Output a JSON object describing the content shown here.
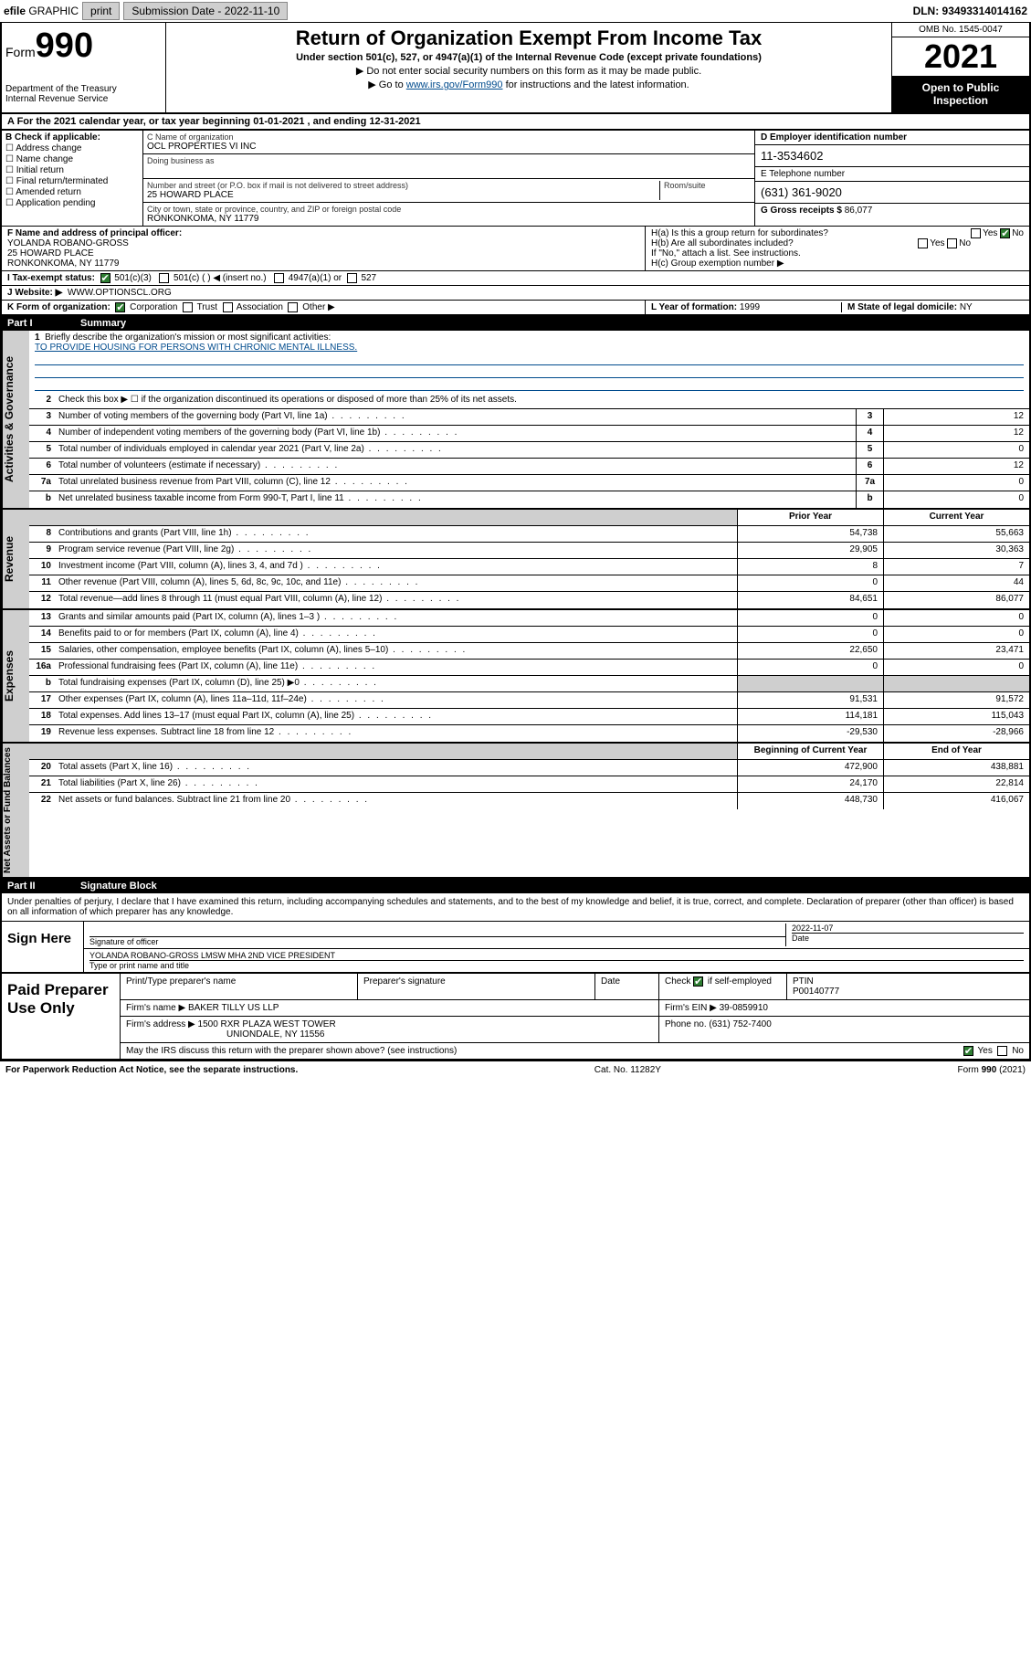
{
  "topbar": {
    "efile_prefix": "efile",
    "efile_graphic": "GRAPHIC",
    "print": "print",
    "submission_label": "Submission Date - 2022-11-10",
    "dln": "DLN: 93493314014162"
  },
  "header": {
    "form_word": "Form",
    "form_num": "990",
    "dept": "Department of the Treasury",
    "irs": "Internal Revenue Service",
    "title": "Return of Organization Exempt From Income Tax",
    "subtitle1": "Under section 501(c), 527, or 4947(a)(1) of the Internal Revenue Code (except private foundations)",
    "subtitle2": "▶ Do not enter social security numbers on this form as it may be made public.",
    "subtitle3_pre": "▶ Go to ",
    "subtitle3_link": "www.irs.gov/Form990",
    "subtitle3_post": " for instructions and the latest information.",
    "omb": "OMB No. 1545-0047",
    "year": "2021",
    "open_pub": "Open to Public Inspection"
  },
  "period": "A For the 2021 calendar year, or tax year beginning 01-01-2021   , and ending 12-31-2021",
  "blockB": {
    "label": "B Check if applicable:",
    "opts": [
      "Address change",
      "Name change",
      "Initial return",
      "Final return/terminated",
      "Amended return",
      "Application pending"
    ]
  },
  "blockC": {
    "name_lbl": "C Name of organization",
    "name": "OCL PROPERTIES VI INC",
    "dba_lbl": "Doing business as",
    "dba": "",
    "addr_lbl": "Number and street (or P.O. box if mail is not delivered to street address)",
    "room_lbl": "Room/suite",
    "addr": "25 HOWARD PLACE",
    "city_lbl": "City or town, state or province, country, and ZIP or foreign postal code",
    "city": "RONKONKOMA, NY  11779"
  },
  "blockD": {
    "ein_lbl": "D Employer identification number",
    "ein": "11-3534602",
    "phone_lbl": "E Telephone number",
    "phone": "(631) 361-9020",
    "gross_lbl": "G Gross receipts $",
    "gross": "86,077"
  },
  "blockF": {
    "lbl": "F Name and address of principal officer:",
    "name": "YOLANDA ROBANO-GROSS",
    "addr1": "25 HOWARD PLACE",
    "addr2": "RONKONKOMA, NY  11779"
  },
  "blockH": {
    "ha": "H(a)  Is this a group return for subordinates?",
    "hb": "H(b)  Are all subordinates included?",
    "hb2": "If \"No,\" attach a list. See instructions.",
    "hc": "H(c)  Group exemption number ▶",
    "yes": "Yes",
    "no": "No"
  },
  "rowI": {
    "lbl": "I    Tax-exempt status:",
    "o1": "501(c)(3)",
    "o2": "501(c) (   ) ◀ (insert no.)",
    "o3": "4947(a)(1) or",
    "o4": "527"
  },
  "rowJ": {
    "lbl": "J   Website: ▶",
    "val": "WWW.OPTIONSCL.ORG"
  },
  "rowK": {
    "lbl": "K Form of organization:",
    "o1": "Corporation",
    "o2": "Trust",
    "o3": "Association",
    "o4": "Other ▶",
    "l_lbl": "L Year of formation:",
    "l_val": "1999",
    "m_lbl": "M State of legal domicile:",
    "m_val": "NY"
  },
  "part1": {
    "num": "Part I",
    "title": "Summary"
  },
  "governance": {
    "label": "Activities & Governance",
    "l1": "Briefly describe the organization's mission or most significant activities:",
    "l1v": "TO PROVIDE HOUSING FOR PERSONS WITH CHRONIC MENTAL ILLNESS.",
    "l2": "Check this box ▶ ☐  if the organization discontinued its operations or disposed of more than 25% of its net assets.",
    "rows": [
      {
        "n": "3",
        "t": "Number of voting members of the governing body (Part VI, line 1a)",
        "v": "12"
      },
      {
        "n": "4",
        "t": "Number of independent voting members of the governing body (Part VI, line 1b)",
        "v": "12"
      },
      {
        "n": "5",
        "t": "Total number of individuals employed in calendar year 2021 (Part V, line 2a)",
        "v": "0"
      },
      {
        "n": "6",
        "t": "Total number of volunteers (estimate if necessary)",
        "v": "12"
      },
      {
        "n": "7a",
        "t": "Total unrelated business revenue from Part VIII, column (C), line 12",
        "v": "0"
      },
      {
        "n": "b",
        "t": "Net unrelated business taxable income from Form 990-T, Part I, line 11",
        "v": "0"
      }
    ]
  },
  "revenue": {
    "label": "Revenue",
    "hdr_prior": "Prior Year",
    "hdr_curr": "Current Year",
    "rows": [
      {
        "n": "8",
        "t": "Contributions and grants (Part VIII, line 1h)",
        "p": "54,738",
        "c": "55,663"
      },
      {
        "n": "9",
        "t": "Program service revenue (Part VIII, line 2g)",
        "p": "29,905",
        "c": "30,363"
      },
      {
        "n": "10",
        "t": "Investment income (Part VIII, column (A), lines 3, 4, and 7d )",
        "p": "8",
        "c": "7"
      },
      {
        "n": "11",
        "t": "Other revenue (Part VIII, column (A), lines 5, 6d, 8c, 9c, 10c, and 11e)",
        "p": "0",
        "c": "44"
      },
      {
        "n": "12",
        "t": "Total revenue—add lines 8 through 11 (must equal Part VIII, column (A), line 12)",
        "p": "84,651",
        "c": "86,077"
      }
    ]
  },
  "expenses": {
    "label": "Expenses",
    "rows": [
      {
        "n": "13",
        "t": "Grants and similar amounts paid (Part IX, column (A), lines 1–3 )",
        "p": "0",
        "c": "0"
      },
      {
        "n": "14",
        "t": "Benefits paid to or for members (Part IX, column (A), line 4)",
        "p": "0",
        "c": "0"
      },
      {
        "n": "15",
        "t": "Salaries, other compensation, employee benefits (Part IX, column (A), lines 5–10)",
        "p": "22,650",
        "c": "23,471"
      },
      {
        "n": "16a",
        "t": "Professional fundraising fees (Part IX, column (A), line 11e)",
        "p": "0",
        "c": "0"
      },
      {
        "n": "b",
        "t": "Total fundraising expenses (Part IX, column (D), line 25) ▶0",
        "p": "",
        "c": "",
        "grey": true
      },
      {
        "n": "17",
        "t": "Other expenses (Part IX, column (A), lines 11a–11d, 11f–24e)",
        "p": "91,531",
        "c": "91,572"
      },
      {
        "n": "18",
        "t": "Total expenses. Add lines 13–17 (must equal Part IX, column (A), line 25)",
        "p": "114,181",
        "c": "115,043"
      },
      {
        "n": "19",
        "t": "Revenue less expenses. Subtract line 18 from line 12",
        "p": "-29,530",
        "c": "-28,966"
      }
    ]
  },
  "netassets": {
    "label": "Net Assets or Fund Balances",
    "hdr_beg": "Beginning of Current Year",
    "hdr_end": "End of Year",
    "rows": [
      {
        "n": "20",
        "t": "Total assets (Part X, line 16)",
        "p": "472,900",
        "c": "438,881"
      },
      {
        "n": "21",
        "t": "Total liabilities (Part X, line 26)",
        "p": "24,170",
        "c": "22,814"
      },
      {
        "n": "22",
        "t": "Net assets or fund balances. Subtract line 21 from line 20",
        "p": "448,730",
        "c": "416,067"
      }
    ]
  },
  "part2": {
    "num": "Part II",
    "title": "Signature Block"
  },
  "sig": {
    "decl": "Under penalties of perjury, I declare that I have examined this return, including accompanying schedules and statements, and to the best of my knowledge and belief, it is true, correct, and complete. Declaration of preparer (other than officer) is based on all information of which preparer has any knowledge.",
    "sign_here": "Sign Here",
    "sig_lbl": "Signature of officer",
    "date_lbl": "Date",
    "date": "2022-11-07",
    "officer": "YOLANDA ROBANO-GROSS LMSW MHA  2ND VICE PRESIDENT",
    "officer_lbl": "Type or print name and title"
  },
  "prep": {
    "title": "Paid Preparer Use Only",
    "col1": "Print/Type preparer's name",
    "col2": "Preparer's signature",
    "col3": "Date",
    "col4a": "Check",
    "col4b": "if self-employed",
    "col5": "PTIN",
    "ptin": "P00140777",
    "firm_lbl": "Firm's name    ▶",
    "firm": "BAKER TILLY US LLP",
    "ein_lbl": "Firm's EIN ▶",
    "ein": "39-0859910",
    "addr_lbl": "Firm's address ▶",
    "addr1": "1500 RXR PLAZA WEST TOWER",
    "addr2": "UNIONDALE, NY  11556",
    "phone_lbl": "Phone no.",
    "phone": "(631) 752-7400",
    "discuss": "May the IRS discuss this return with the preparer shown above? (see instructions)",
    "yes": "Yes",
    "no": "No"
  },
  "footer": {
    "left": "For Paperwork Reduction Act Notice, see the separate instructions.",
    "mid": "Cat. No. 11282Y",
    "right": "Form 990 (2021)"
  },
  "colors": {
    "link": "#004b8d",
    "grey": "#cfcfcf",
    "check": "#2e7d32"
  }
}
